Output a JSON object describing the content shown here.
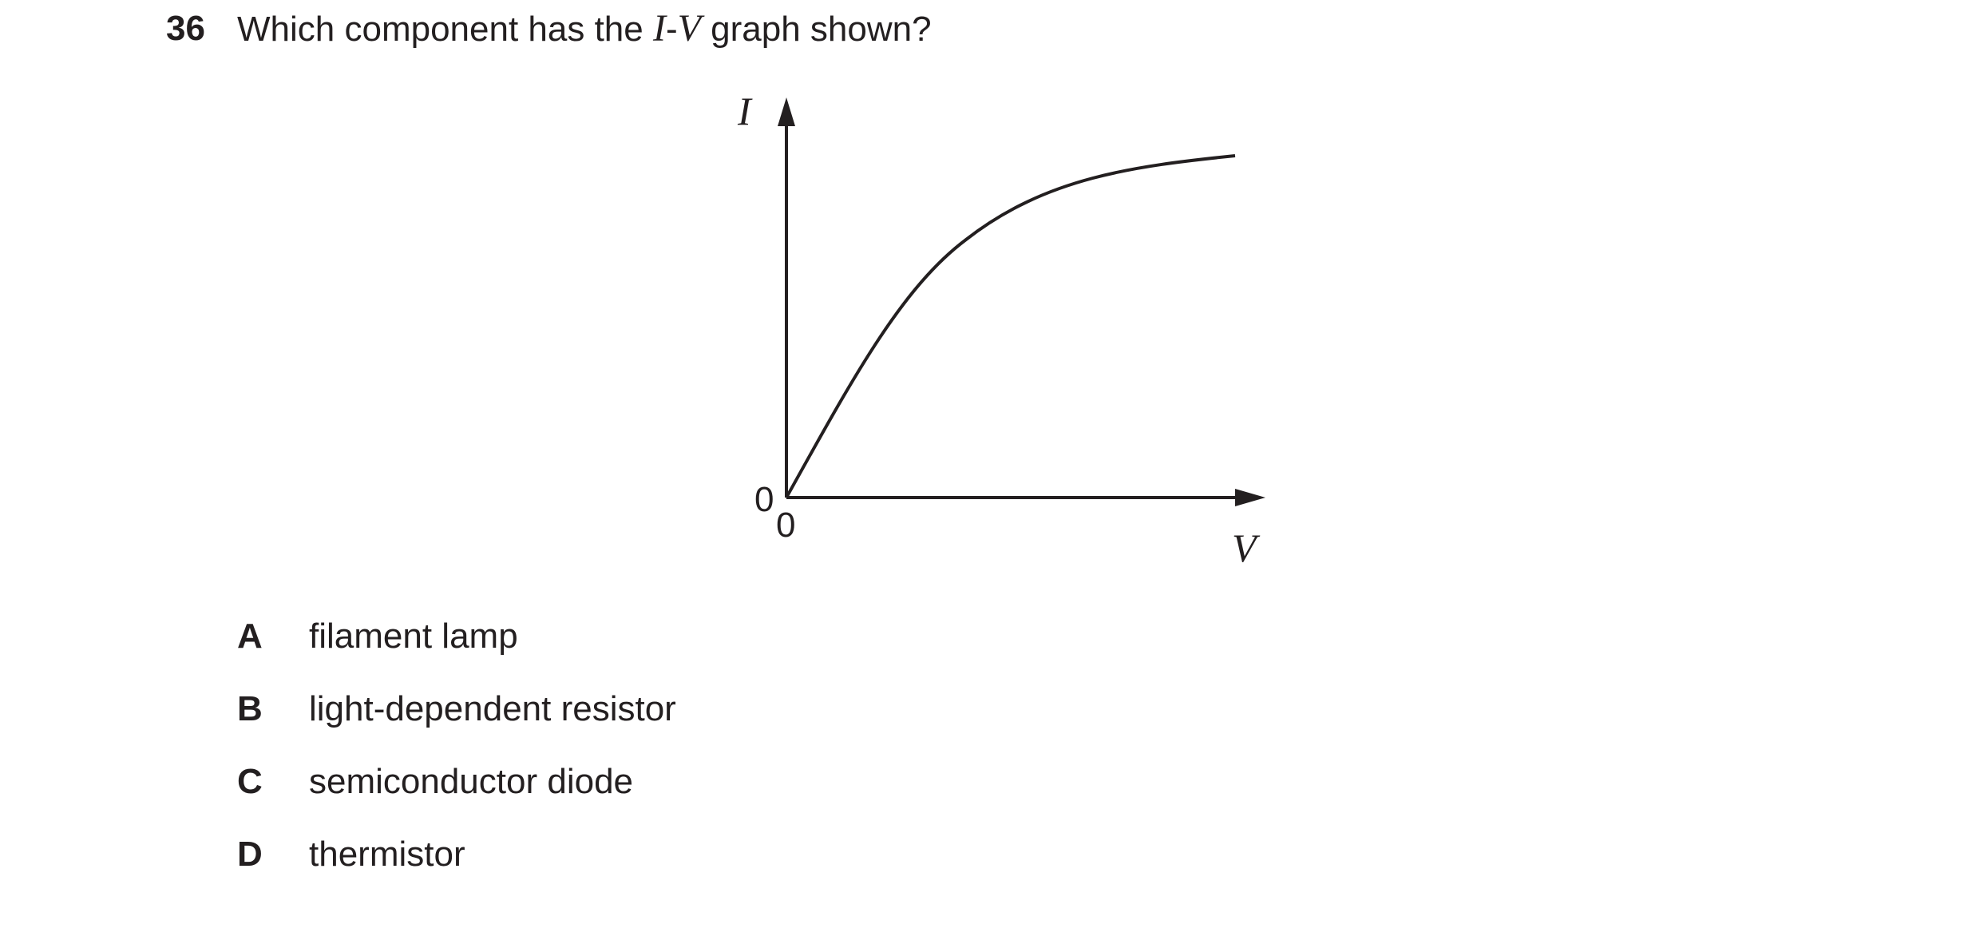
{
  "question": {
    "number": "36",
    "text_before": "Which component has the ",
    "current_symbol": "I",
    "dash": "-",
    "voltage_symbol": "V",
    "text_after": " graph shown?"
  },
  "graph": {
    "y_axis_label": "I",
    "x_axis_label": "V",
    "y_origin_label": "0",
    "x_origin_label": "0",
    "line_color": "#231f20"
  },
  "options": [
    {
      "letter": "A",
      "text": "filament lamp"
    },
    {
      "letter": "B",
      "text": "light-dependent resistor"
    },
    {
      "letter": "C",
      "text": "semiconductor diode"
    },
    {
      "letter": "D",
      "text": "thermistor"
    }
  ]
}
